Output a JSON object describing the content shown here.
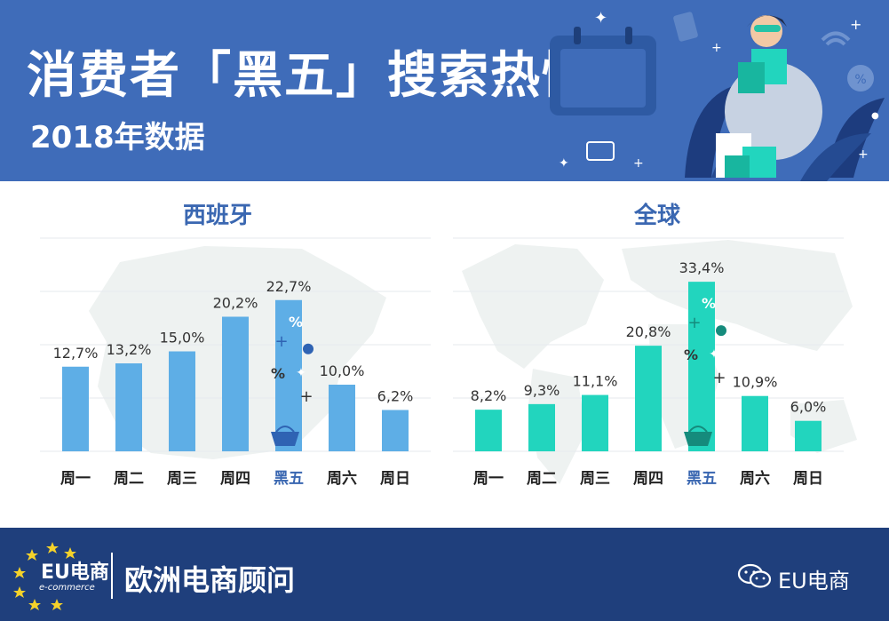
{
  "header": {
    "title": "消费者「黑五」搜索热情",
    "subtitle": "2018年数据"
  },
  "colors": {
    "header_bg": "#3f6cb9",
    "footer_bg": "#1f3f7c",
    "spain_bar": "#5eaee6",
    "global_bar": "#22d5be",
    "highlight_label": "#3a67b1",
    "map_gray": "#eef2f1"
  },
  "chart_data": [
    {
      "type": "bar",
      "title": "西班牙",
      "categories": [
        "周一",
        "周二",
        "周三",
        "周四",
        "黑五",
        "周六",
        "周日"
      ],
      "values": [
        12.7,
        13.2,
        15.0,
        20.2,
        22.7,
        10.0,
        6.2
      ],
      "value_labels": [
        "12,7%",
        "13,2%",
        "15,0%",
        "20,2%",
        "22,7%",
        "10,0%",
        "6,2%"
      ],
      "highlight_category": "黑五",
      "ylim": [
        0,
        32
      ],
      "grid": true,
      "xlabel": "",
      "ylabel": ""
    },
    {
      "type": "bar",
      "title": "全球",
      "categories": [
        "周一",
        "周二",
        "周三",
        "周四",
        "黑五",
        "周六",
        "周日"
      ],
      "values": [
        8.2,
        9.3,
        11.1,
        20.8,
        33.4,
        10.9,
        6.0
      ],
      "value_labels": [
        "8,2%",
        "9,3%",
        "11,1%",
        "20,8%",
        "33,4%",
        "10,9%",
        "6,0%"
      ],
      "highlight_category": "黑五",
      "ylim": [
        0,
        42
      ],
      "grid": true,
      "xlabel": "",
      "ylabel": ""
    }
  ],
  "footer": {
    "logo_main": "EU电商",
    "logo_sub": "e-commerce",
    "text": "欧洲电商顾问",
    "account": "EU电商"
  },
  "icons": [
    "shopping-basket-icon",
    "shopping-bag-icon",
    "wechat-icon",
    "eu-stars-icon",
    "plus-icon",
    "percent-icon"
  ]
}
